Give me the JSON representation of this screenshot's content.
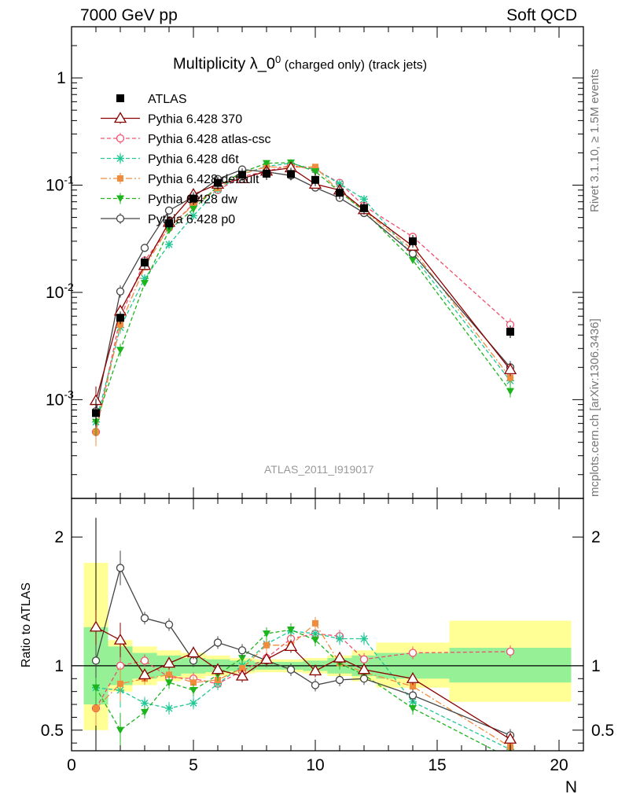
{
  "header": {
    "left": "7000 GeV pp",
    "right": "Soft QCD"
  },
  "title": {
    "main": "Multiplicity λ_0",
    "sup": "0",
    "suffix": " (charged only) (track jets)"
  },
  "side_labels": {
    "rivet": "Rivet 3.1.10, ≥ 1.5M events",
    "mcplots": "mcplots.cern.ch [arXiv:1306.3436]"
  },
  "watermark": "ATLAS_2011_I919017",
  "colors": {
    "data": "#000000",
    "p370": "#8b0000",
    "atlascsc": "#f0506e",
    "d6t": "#20c896",
    "default": "#f08c3c",
    "dw": "#1eb41e",
    "p0": "#444444",
    "band_outer": "#ffff96",
    "band_inner": "#96f096"
  },
  "chart_data": [
    {
      "type": "line",
      "panel": "main",
      "title": "Multiplicity λ_0^0 (charged only) (track jets)",
      "xlabel": "",
      "ylabel": "",
      "xlim": [
        0,
        21
      ],
      "ylim": [
        0.00012,
        3
      ],
      "yscale": "log",
      "ytick_labels": [
        "10^-3",
        "10^-2",
        "10^-1",
        "1"
      ],
      "legend_position": "top-left",
      "x": [
        1,
        2,
        3,
        4,
        5,
        6,
        7,
        8,
        9,
        10,
        11,
        12,
        14,
        18
      ],
      "series": [
        {
          "name": "ATLAS",
          "key": "data",
          "values": [
            0.00075,
            0.0058,
            0.019,
            0.044,
            0.075,
            0.105,
            0.125,
            0.128,
            0.127,
            0.112,
            0.085,
            0.061,
            0.03,
            0.0043
          ]
        },
        {
          "name": "Pythia 6.428 370",
          "key": "p370",
          "values": [
            0.00098,
            0.0067,
            0.0178,
            0.045,
            0.082,
            0.102,
            0.115,
            0.135,
            0.145,
            0.102,
            0.09,
            0.059,
            0.027,
            0.0019
          ]
        },
        {
          "name": "Pythia 6.428 atlas-csc",
          "key": "atlascsc",
          "values": [
            0.0005,
            0.0058,
            0.0198,
            0.04,
            0.067,
            0.09,
            0.12,
            0.135,
            0.153,
            0.14,
            0.105,
            0.064,
            0.033,
            0.005
          ]
        },
        {
          "name": "Pythia 6.428 d6t",
          "key": "d6t",
          "values": [
            0.00062,
            0.0047,
            0.0135,
            0.028,
            0.052,
            0.091,
            0.126,
            0.15,
            0.16,
            0.14,
            0.103,
            0.074,
            0.022,
            0.0015
          ]
        },
        {
          "name": "Pythia 6.428 default",
          "key": "default",
          "values": [
            0.0005,
            0.005,
            0.0172,
            0.041,
            0.065,
            0.094,
            0.128,
            0.148,
            0.147,
            0.148,
            0.087,
            0.058,
            0.025,
            0.0016
          ]
        },
        {
          "name": "Pythia 6.428 dw",
          "key": "dw",
          "values": [
            0.00062,
            0.0029,
            0.0122,
            0.038,
            0.06,
            0.098,
            0.132,
            0.16,
            0.162,
            0.134,
            0.087,
            0.057,
            0.02,
            0.0012
          ]
        },
        {
          "name": "Pythia 6.428 p0",
          "key": "p0",
          "values": [
            0.00078,
            0.0102,
            0.026,
            0.058,
            0.078,
            0.114,
            0.14,
            0.133,
            0.123,
            0.095,
            0.076,
            0.055,
            0.023,
            0.002
          ]
        }
      ]
    },
    {
      "type": "line",
      "panel": "ratio",
      "xlabel": "N",
      "ylabel": "Ratio to ATLAS",
      "xlim": [
        0,
        21
      ],
      "ylim": [
        0.34,
        2.3
      ],
      "yticks": [
        0.5,
        1,
        2
      ],
      "xticks": [
        0,
        5,
        10,
        15,
        20
      ],
      "bins": [
        [
          0.5,
          1.5
        ],
        [
          1.5,
          2.5
        ],
        [
          2.5,
          3.5
        ],
        [
          3.5,
          4.5
        ],
        [
          4.5,
          5.5
        ],
        [
          5.5,
          6.5
        ],
        [
          6.5,
          7.5
        ],
        [
          7.5,
          8.5
        ],
        [
          8.5,
          9.5
        ],
        [
          9.5,
          10.5
        ],
        [
          10.5,
          11.5
        ],
        [
          11.5,
          12.5
        ],
        [
          12.5,
          15.5
        ],
        [
          15.5,
          20.5
        ]
      ],
      "band_inner": [
        [
          0.7,
          1.3
        ],
        [
          0.85,
          1.15
        ],
        [
          0.9,
          1.1
        ],
        [
          0.92,
          1.08
        ],
        [
          0.94,
          1.06
        ],
        [
          0.95,
          1.05
        ],
        [
          0.96,
          1.04
        ],
        [
          0.97,
          1.03
        ],
        [
          0.97,
          1.03
        ],
        [
          0.96,
          1.04
        ],
        [
          0.94,
          1.06
        ],
        [
          0.92,
          1.08
        ],
        [
          0.9,
          1.1
        ],
        [
          0.87,
          1.14
        ]
      ],
      "band_outer": [
        [
          0.5,
          1.8
        ],
        [
          0.8,
          1.2
        ],
        [
          0.85,
          1.15
        ],
        [
          0.88,
          1.12
        ],
        [
          0.9,
          1.1
        ],
        [
          0.92,
          1.08
        ],
        [
          0.94,
          1.06
        ],
        [
          0.95,
          1.05
        ],
        [
          0.95,
          1.05
        ],
        [
          0.94,
          1.06
        ],
        [
          0.92,
          1.08
        ],
        [
          0.88,
          1.12
        ],
        [
          0.83,
          1.18
        ],
        [
          0.72,
          1.35
        ]
      ],
      "x": [
        1,
        2,
        3,
        4,
        5,
        6,
        7,
        8,
        9,
        10,
        11,
        12,
        14,
        18
      ],
      "series": [
        {
          "name": "Pythia 6.428 370",
          "key": "p370",
          "values": [
            1.3,
            1.2,
            0.93,
            1.02,
            1.1,
            0.97,
            0.92,
            1.05,
            1.15,
            0.96,
            1.06,
            0.97,
            0.9,
            0.43
          ]
        },
        {
          "name": "Pythia 6.428 atlas-csc",
          "key": "atlascsc",
          "values": [
            0.67,
            1.0,
            1.04,
            0.91,
            0.9,
            0.86,
            0.96,
            1.06,
            1.21,
            1.25,
            1.23,
            1.05,
            1.1,
            1.11
          ]
        },
        {
          "name": "Pythia 6.428 d6t",
          "key": "d6t",
          "values": [
            0.83,
            0.81,
            0.71,
            0.67,
            0.71,
            0.86,
            1.0,
            1.17,
            1.27,
            1.25,
            1.21,
            1.21,
            0.72,
            0.35
          ]
        },
        {
          "name": "Pythia 6.428 default",
          "key": "default",
          "values": [
            0.67,
            0.86,
            0.9,
            0.93,
            0.87,
            0.89,
            0.98,
            1.16,
            1.16,
            1.33,
            1.02,
            0.95,
            0.84,
            0.37
          ]
        },
        {
          "name": "Pythia 6.428 dw",
          "key": "dw",
          "values": [
            0.83,
            0.5,
            0.64,
            0.87,
            0.81,
            0.93,
            1.06,
            1.25,
            1.28,
            1.2,
            1.02,
            0.93,
            0.67,
            0.28
          ]
        },
        {
          "name": "Pythia 6.428 p0",
          "key": "p0",
          "values": [
            1.04,
            1.76,
            1.37,
            1.32,
            1.04,
            1.18,
            1.12,
            1.04,
            0.97,
            0.85,
            0.89,
            0.9,
            0.77,
            0.46
          ]
        }
      ]
    }
  ]
}
